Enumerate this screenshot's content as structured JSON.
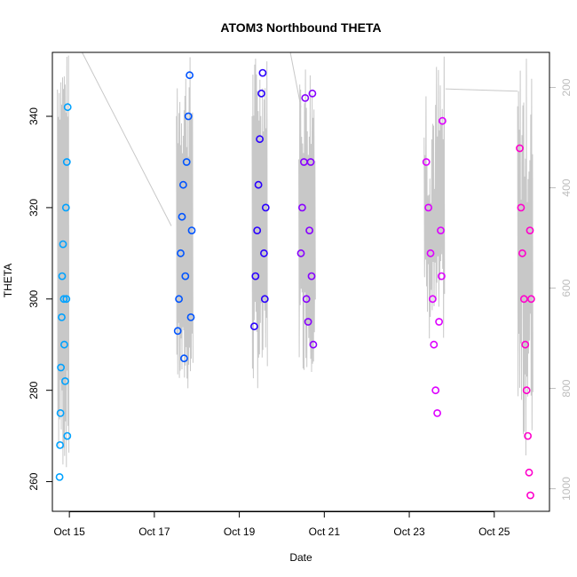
{
  "chart_data": {
    "type": "scatter",
    "title": "ATOM3 Northbound THETA",
    "xlabel": "Date",
    "ylabel": "THETA",
    "x_ticks": [
      "Oct 15",
      "Oct 17",
      "Oct 19",
      "Oct 21",
      "Oct 23",
      "Oct 25"
    ],
    "y_ticks": [
      260,
      280,
      300,
      320,
      340
    ],
    "y2_ticks": [
      200,
      400,
      600,
      800,
      1000
    ],
    "xlim_days": [
      14.6,
      26.3
    ],
    "ylim": [
      253.5,
      354
    ],
    "y2lim": [
      1045,
      130
    ],
    "y2_reversed": true,
    "grid": false,
    "series": [
      {
        "color": "#00a2ff",
        "points": [
          {
            "x": 14.77,
            "y": 261.0
          },
          {
            "x": 14.78,
            "y": 268.0
          },
          {
            "x": 14.79,
            "y": 275.0
          },
          {
            "x": 14.8,
            "y": 285.0
          },
          {
            "x": 14.82,
            "y": 296.0
          },
          {
            "x": 14.83,
            "y": 305.0
          },
          {
            "x": 14.85,
            "y": 312.0
          },
          {
            "x": 14.87,
            "y": 300.0
          },
          {
            "x": 14.88,
            "y": 290.0
          },
          {
            "x": 14.9,
            "y": 282.0
          },
          {
            "x": 14.92,
            "y": 320.0
          },
          {
            "x": 14.94,
            "y": 330.0
          },
          {
            "x": 14.96,
            "y": 342.0
          },
          {
            "x": 14.95,
            "y": 270.0
          },
          {
            "x": 14.93,
            "y": 300.0
          }
        ]
      },
      {
        "color": "#0054ff",
        "points": [
          {
            "x": 17.55,
            "y": 293.0
          },
          {
            "x": 17.58,
            "y": 300.0
          },
          {
            "x": 17.62,
            "y": 310.0
          },
          {
            "x": 17.65,
            "y": 318.0
          },
          {
            "x": 17.68,
            "y": 325.0
          },
          {
            "x": 17.7,
            "y": 287.0
          },
          {
            "x": 17.73,
            "y": 305.0
          },
          {
            "x": 17.76,
            "y": 330.0
          },
          {
            "x": 17.8,
            "y": 340.0
          },
          {
            "x": 17.83,
            "y": 349.0
          },
          {
            "x": 17.86,
            "y": 296.0
          },
          {
            "x": 17.88,
            "y": 315.0
          }
        ]
      },
      {
        "color": "#2a00ff",
        "points": [
          {
            "x": 19.35,
            "y": 294.0
          },
          {
            "x": 19.38,
            "y": 305.0
          },
          {
            "x": 19.42,
            "y": 315.0
          },
          {
            "x": 19.45,
            "y": 325.0
          },
          {
            "x": 19.48,
            "y": 335.0
          },
          {
            "x": 19.52,
            "y": 345.0
          },
          {
            "x": 19.55,
            "y": 349.5
          },
          {
            "x": 19.58,
            "y": 310.0
          },
          {
            "x": 19.6,
            "y": 300.0
          },
          {
            "x": 19.62,
            "y": 320.0
          }
        ]
      },
      {
        "color": "#8800ff",
        "points": [
          {
            "x": 20.45,
            "y": 310.0
          },
          {
            "x": 20.48,
            "y": 320.0
          },
          {
            "x": 20.52,
            "y": 330.0
          },
          {
            "x": 20.55,
            "y": 344.0
          },
          {
            "x": 20.58,
            "y": 300.0
          },
          {
            "x": 20.62,
            "y": 295.0
          },
          {
            "x": 20.65,
            "y": 315.0
          },
          {
            "x": 20.68,
            "y": 330.0
          },
          {
            "x": 20.72,
            "y": 345.0
          },
          {
            "x": 20.74,
            "y": 290.0
          },
          {
            "x": 20.7,
            "y": 305.0
          }
        ]
      },
      {
        "color": "#dd00ff",
        "points": [
          {
            "x": 23.4,
            "y": 330.0
          },
          {
            "x": 23.45,
            "y": 320.0
          },
          {
            "x": 23.5,
            "y": 310.0
          },
          {
            "x": 23.55,
            "y": 300.0
          },
          {
            "x": 23.58,
            "y": 290.0
          },
          {
            "x": 23.62,
            "y": 280.0
          },
          {
            "x": 23.66,
            "y": 275.0
          },
          {
            "x": 23.7,
            "y": 295.0
          },
          {
            "x": 23.74,
            "y": 315.0
          },
          {
            "x": 23.78,
            "y": 339.0
          },
          {
            "x": 23.76,
            "y": 305.0
          }
        ]
      },
      {
        "color": "#ff00cc",
        "points": [
          {
            "x": 25.6,
            "y": 333.0
          },
          {
            "x": 25.63,
            "y": 320.0
          },
          {
            "x": 25.66,
            "y": 310.0
          },
          {
            "x": 25.7,
            "y": 300.0
          },
          {
            "x": 25.73,
            "y": 290.0
          },
          {
            "x": 25.76,
            "y": 280.0
          },
          {
            "x": 25.79,
            "y": 270.0
          },
          {
            "x": 25.82,
            "y": 262.0
          },
          {
            "x": 25.85,
            "y": 257.0
          },
          {
            "x": 25.87,
            "y": 300.0
          },
          {
            "x": 25.84,
            "y": 315.0
          }
        ]
      }
    ]
  }
}
